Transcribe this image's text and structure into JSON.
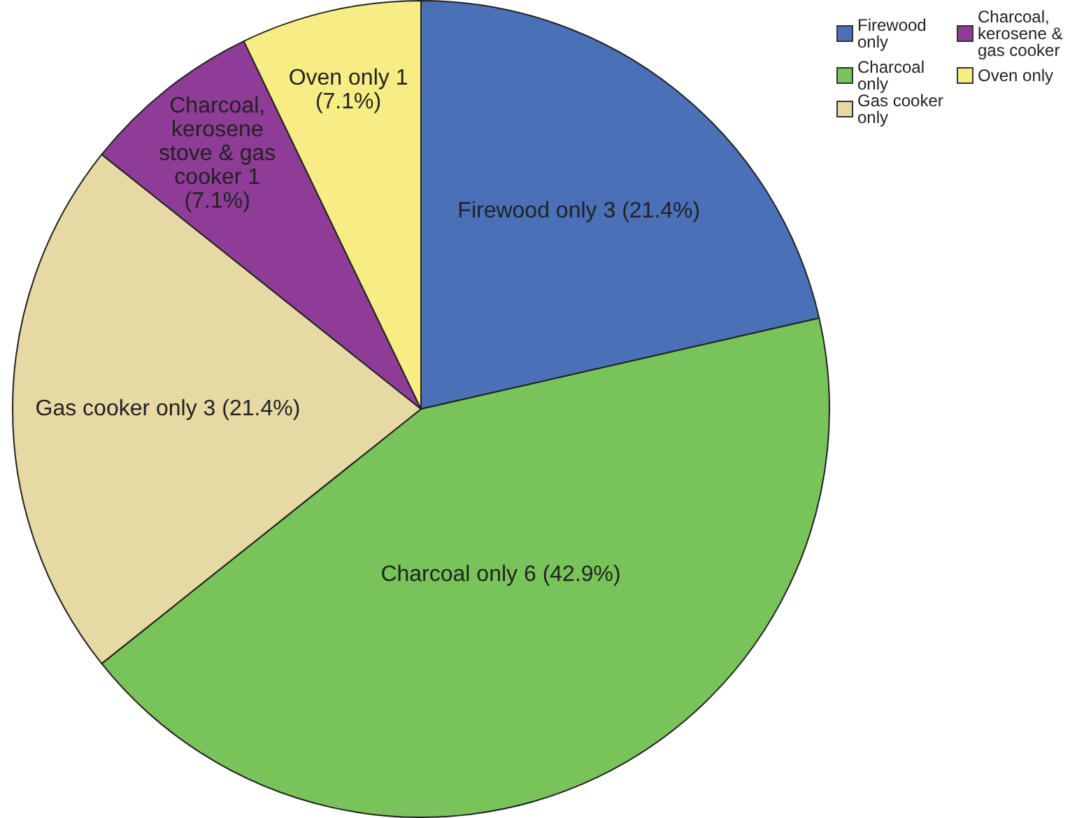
{
  "chart_data": {
    "type": "pie",
    "categories": [
      "Firewood only",
      "Charcoal only",
      "Gas cooker only",
      "Charcoal, kerosene & gas cooker",
      "Oven only"
    ],
    "values": [
      3,
      6,
      3,
      1,
      1
    ],
    "colors": [
      "#4a70b8",
      "#78c35a",
      "#e6d9a4",
      "#8e3c96",
      "#f6ee84"
    ],
    "value_labels": [
      "Firewood only 3 (21.4%)",
      "Charcoal only 6 (42.9%)",
      "Gas cooker only 3 (21.4%)",
      "Charcoal, kerosene stove & gas cooker 1 (7.1%)",
      "Oven only 1 (7.1%)"
    ],
    "legend": "top right"
  }
}
